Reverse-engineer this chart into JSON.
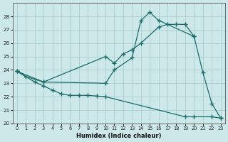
{
  "xlabel": "Humidex (Indice chaleur)",
  "xlim": [
    -0.5,
    23.5
  ],
  "ylim": [
    20,
    29
  ],
  "yticks": [
    20,
    21,
    22,
    23,
    24,
    25,
    26,
    27,
    28
  ],
  "xticks": [
    0,
    1,
    2,
    3,
    4,
    5,
    6,
    7,
    8,
    9,
    10,
    11,
    12,
    13,
    14,
    15,
    16,
    17,
    18,
    19,
    20,
    21,
    22,
    23
  ],
  "bg_color": "#cce8e8",
  "line_color": "#1a6b6b",
  "grid_color": "#aacece",
  "line1_x": [
    0,
    1,
    3,
    10,
    11,
    12,
    13,
    14,
    16,
    17,
    18,
    19,
    20
  ],
  "line1_y": [
    23.9,
    23.5,
    23.1,
    25.0,
    24.5,
    25.2,
    25.5,
    26.0,
    27.2,
    27.4,
    27.4,
    27.4,
    26.5
  ],
  "line2_x": [
    0,
    3,
    10,
    11,
    13,
    14,
    15,
    16,
    20,
    21,
    22,
    23
  ],
  "line2_y": [
    23.9,
    23.1,
    23.0,
    24.0,
    24.9,
    27.7,
    28.3,
    27.7,
    26.5,
    23.8,
    21.5,
    20.4
  ],
  "line3_x": [
    0,
    2,
    3,
    4,
    5,
    6,
    7,
    8,
    9,
    10,
    19,
    20,
    22,
    23
  ],
  "line3_y": [
    23.9,
    23.1,
    22.8,
    22.5,
    22.2,
    22.1,
    22.1,
    22.1,
    22.05,
    22.0,
    20.5,
    20.5,
    20.5,
    20.4
  ]
}
